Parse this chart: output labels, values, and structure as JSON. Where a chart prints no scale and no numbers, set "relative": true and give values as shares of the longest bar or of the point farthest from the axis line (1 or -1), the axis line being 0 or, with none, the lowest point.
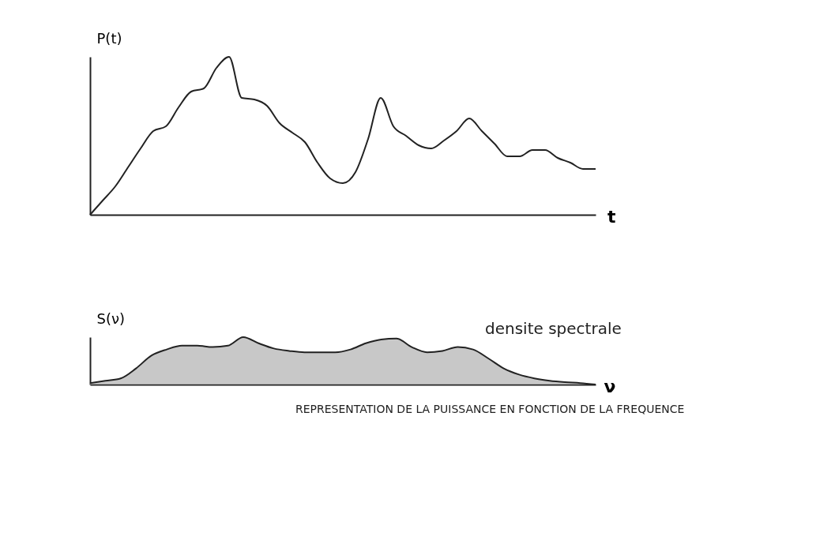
{
  "chart_data": [
    {
      "type": "line",
      "relative": true,
      "ylabel": "P(t)",
      "xlabel": "t",
      "categories": [
        null,
        null,
        null,
        null,
        null,
        null,
        null,
        null,
        null,
        null,
        null,
        null,
        null,
        null,
        null,
        null,
        null,
        null,
        null,
        null,
        null,
        null,
        null,
        null,
        null,
        null,
        null,
        null,
        null,
        null,
        null,
        null,
        null,
        null,
        null,
        null,
        null,
        null,
        null,
        null,
        null
      ],
      "series": [
        {
          "color": "#222222",
          "values": [
            0,
            0.09,
            0.18,
            0.3,
            0.42,
            0.53,
            0.56,
            0.68,
            0.78,
            0.8,
            0.93,
            1.0,
            0.74,
            0.73,
            0.69,
            0.58,
            0.52,
            0.46,
            0.33,
            0.23,
            0.2,
            0.27,
            0.48,
            0.74,
            0.56,
            0.5,
            0.44,
            0.42,
            0.47,
            0.53,
            0.61,
            0.53,
            0.45,
            0.37,
            0.37,
            0.41,
            0.41,
            0.36,
            0.33,
            0.29,
            0.29
          ]
        }
      ]
    },
    {
      "type": "area",
      "relative": true,
      "ylabel": "S(ν)",
      "xlabel": "ν",
      "categories": [
        null,
        null,
        null,
        null,
        null,
        null,
        null,
        null,
        null,
        null,
        null,
        null,
        null,
        null,
        null,
        null,
        null,
        null,
        null,
        null,
        null,
        null,
        null,
        null,
        null,
        null,
        null,
        null,
        null,
        null,
        null,
        null,
        null,
        null
      ],
      "series": [
        {
          "color": "#b0b0b0",
          "values": [
            0.03,
            0.08,
            0.13,
            0.34,
            0.61,
            0.74,
            0.82,
            0.82,
            0.79,
            0.82,
            1.0,
            0.87,
            0.76,
            0.71,
            0.68,
            0.68,
            0.68,
            0.74,
            0.87,
            0.95,
            0.97,
            0.79,
            0.68,
            0.71,
            0.79,
            0.74,
            0.55,
            0.34,
            0.21,
            0.13,
            0.08,
            0.05,
            0.03,
            0
          ]
        }
      ],
      "annotations": [
        "densite spectrale",
        "REPRESENTATION DE LA PUISSANCE EN FONCTION DE LA FREQUENCE"
      ]
    }
  ]
}
